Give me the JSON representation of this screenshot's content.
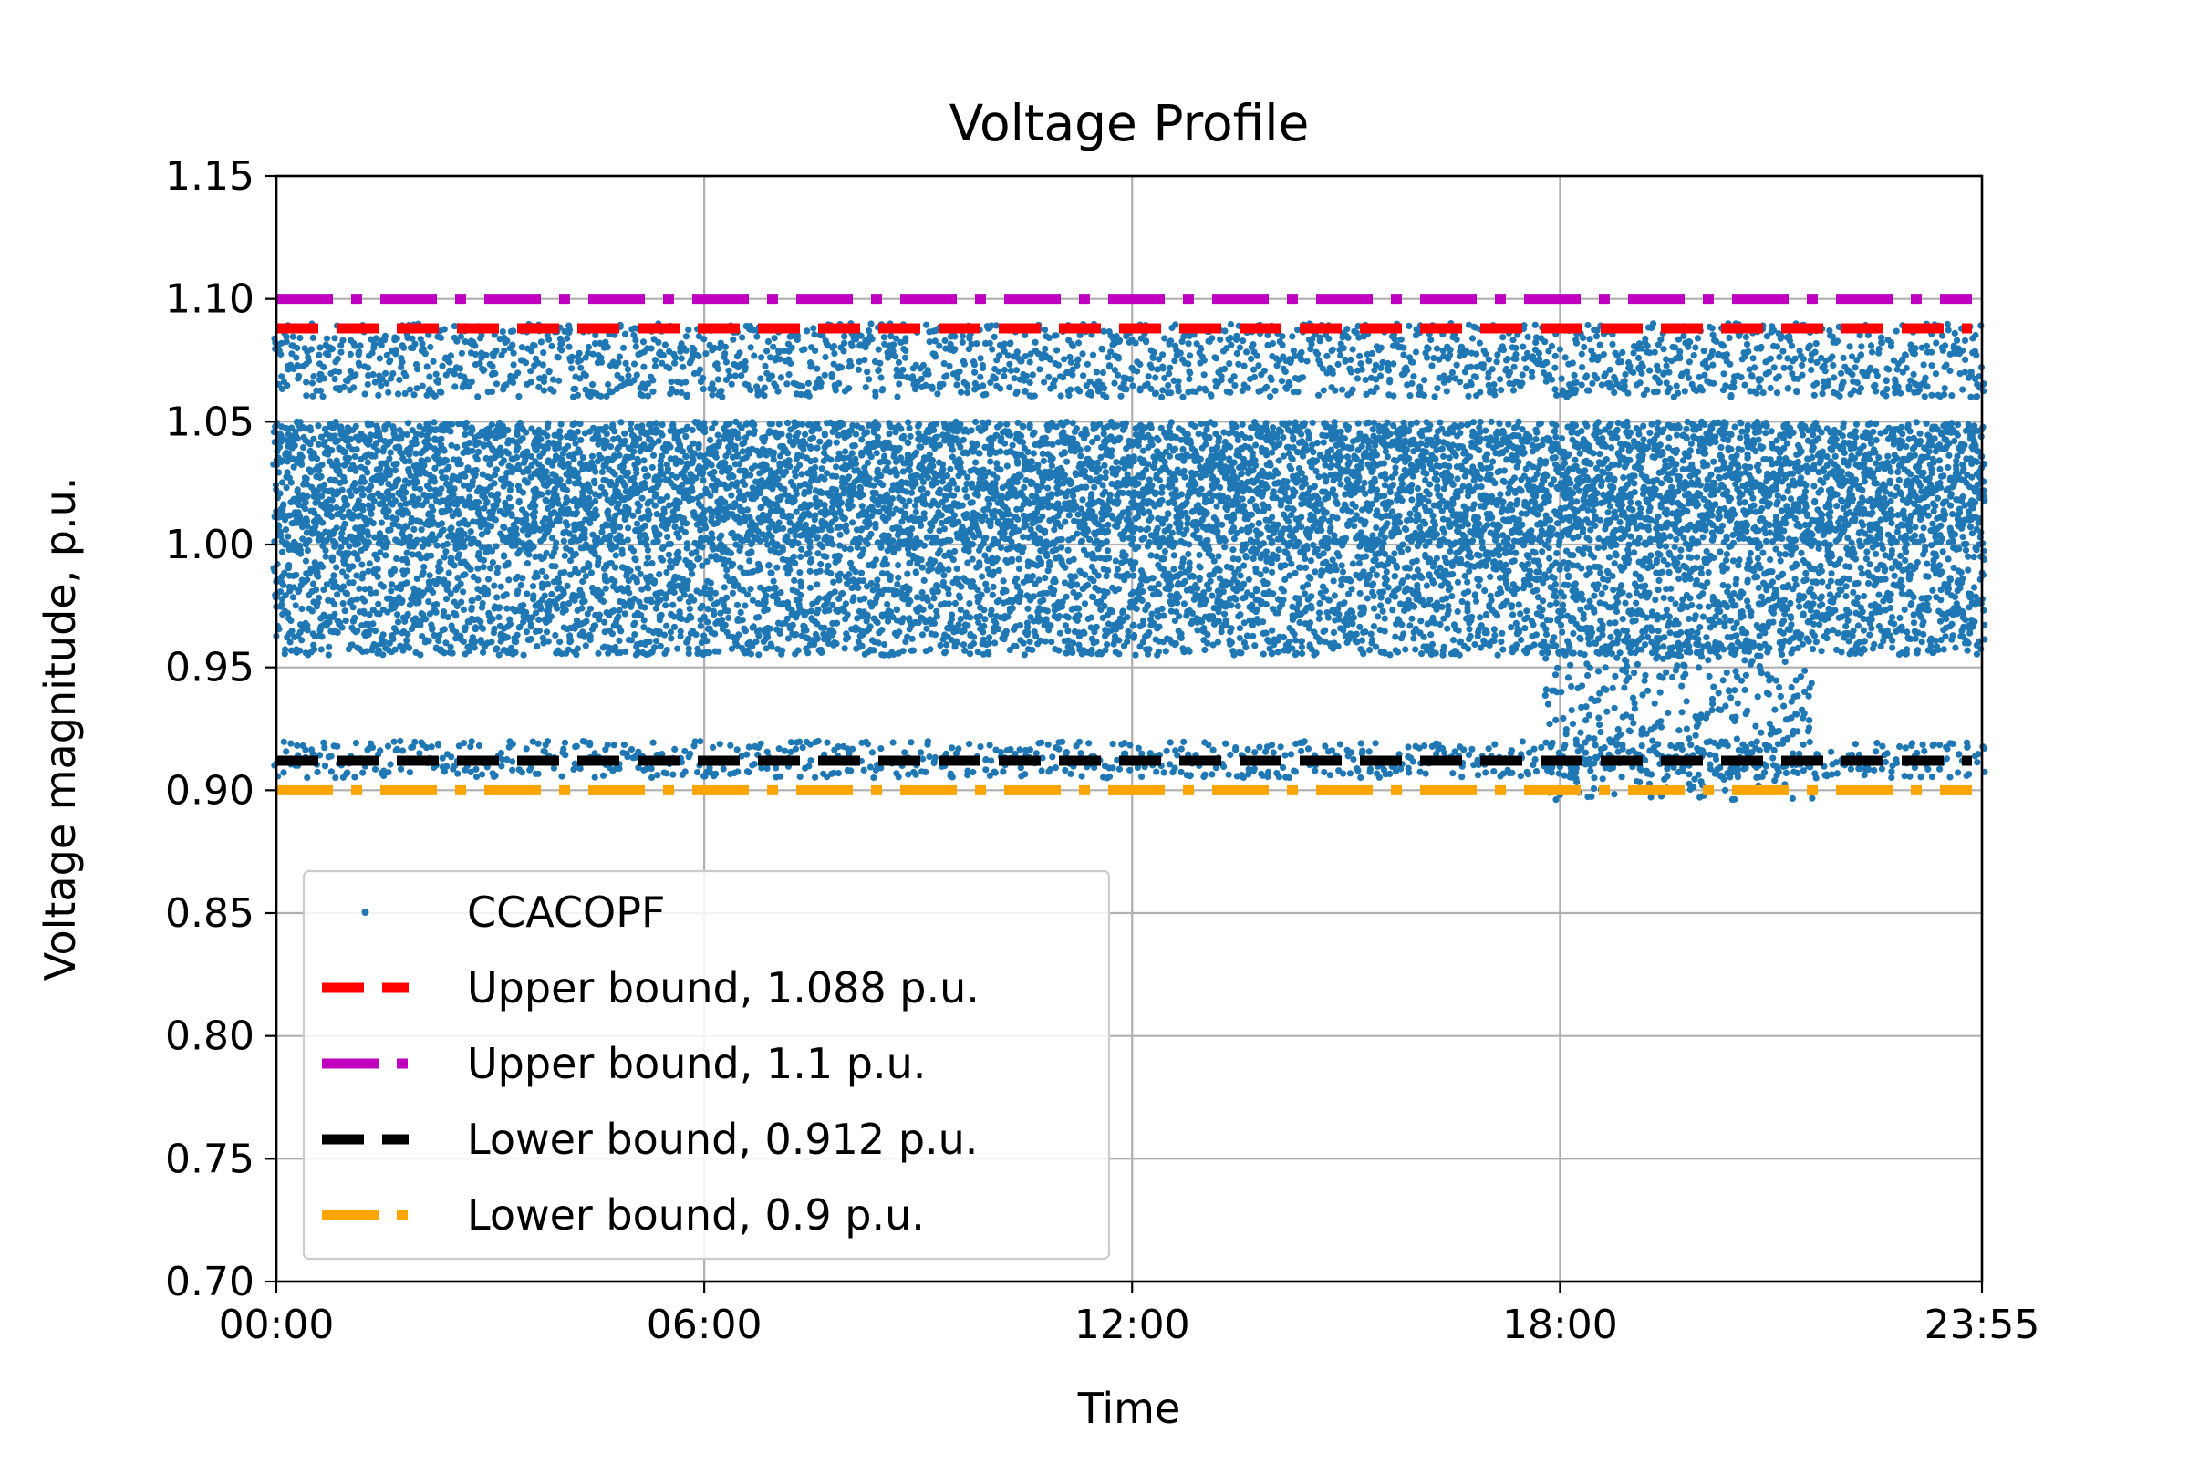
{
  "chart_data": {
    "type": "scatter",
    "title": "Voltage Profile",
    "xlabel": "Time",
    "ylabel": "Voltage magnitude, p.u.",
    "xlim": [
      "00:00",
      "23:55"
    ],
    "ylim": [
      0.7,
      1.15
    ],
    "x_ticks": [
      "00:00",
      "06:00",
      "12:00",
      "18:00",
      "23:55"
    ],
    "y_ticks": [
      "0.70",
      "0.75",
      "0.80",
      "0.85",
      "0.90",
      "0.95",
      "1.00",
      "1.05",
      "1.10",
      "1.15"
    ],
    "grid": true,
    "legend_position": "lower-left",
    "scatter_series": {
      "name": "CCACOPF",
      "color": "#1f77b4",
      "marker": "dot",
      "time_step_minutes": 5,
      "bands": [
        {
          "label": "upper cluster",
          "from": "00:00",
          "to": "23:55",
          "y_range": [
            1.06,
            1.09
          ]
        },
        {
          "label": "dense core",
          "from": "00:00",
          "to": "23:55",
          "y_range": [
            1.0,
            1.05
          ]
        },
        {
          "label": "middle cluster",
          "from": "00:00",
          "to": "23:55",
          "y_range": [
            0.955,
            1.0
          ]
        },
        {
          "label": "low cluster",
          "from": "00:00",
          "to": "23:55",
          "y_range": [
            0.905,
            0.92
          ]
        },
        {
          "label": "evening dip",
          "from": "17:50",
          "to": "21:30",
          "y_range": [
            0.896,
            0.96
          ]
        }
      ]
    },
    "bound_series": [
      {
        "name": "Upper bound, 1.088 p.u.",
        "value": 1.088,
        "color": "#ff0000",
        "dash": "dashed"
      },
      {
        "name": "Upper bound, 1.1 p.u.",
        "value": 1.1,
        "color": "#bf00bf",
        "dash": "dashdot"
      },
      {
        "name": "Lower bound, 0.912 p.u.",
        "value": 0.912,
        "color": "#000000",
        "dash": "dashed"
      },
      {
        "name": "Lower bound, 0.9 p.u.",
        "value": 0.9,
        "color": "#ffa500",
        "dash": "dashdot"
      }
    ],
    "legend_entries": [
      "CCACOPF",
      "Upper bound, 1.088 p.u.",
      "Upper bound, 1.1 p.u.",
      "Lower bound, 0.912 p.u.",
      "Lower bound, 0.9 p.u."
    ]
  }
}
